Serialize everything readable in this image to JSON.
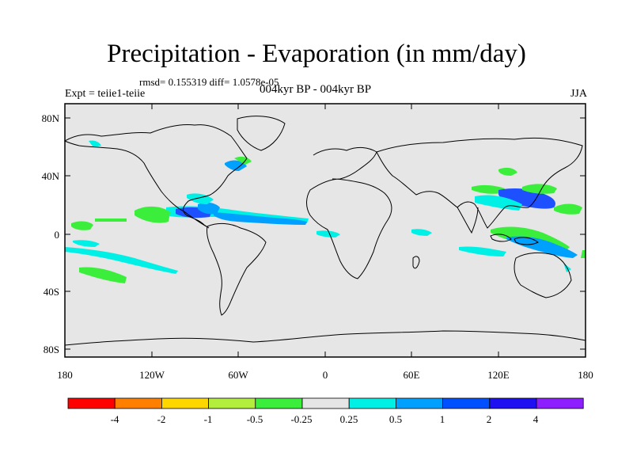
{
  "header": {
    "title": "Precipitation - Evaporation (in mm/day)",
    "stats": "rmsd= 0.155319 diff= 1.0578e-05",
    "experiment": "Expt = teiie1-teiie",
    "period": "004kyr BP - 004kyr BP",
    "season": "JJA"
  },
  "map": {
    "lon_ticks": [
      "180",
      "120W",
      "60W",
      "0",
      "60E",
      "120E",
      "180"
    ],
    "lat_ticks": [
      "80N",
      "40N",
      "0",
      "40S",
      "80S"
    ],
    "colors": {
      "land_ocean": "#e6e6e6",
      "coast": "#000000"
    }
  },
  "colorbar": {
    "labels": [
      "-4",
      "-2",
      "-1",
      "-0.5",
      "-0.25",
      "0.25",
      "0.5",
      "1",
      "2",
      "4"
    ],
    "colors": [
      "#ff0000",
      "#ff8000",
      "#ffd700",
      "#b4ee3c",
      "#3cee3c",
      "#e6e6e6",
      "#00f0e6",
      "#00a0ff",
      "#0050ff",
      "#1e10f0",
      "#8c1eff"
    ]
  }
}
